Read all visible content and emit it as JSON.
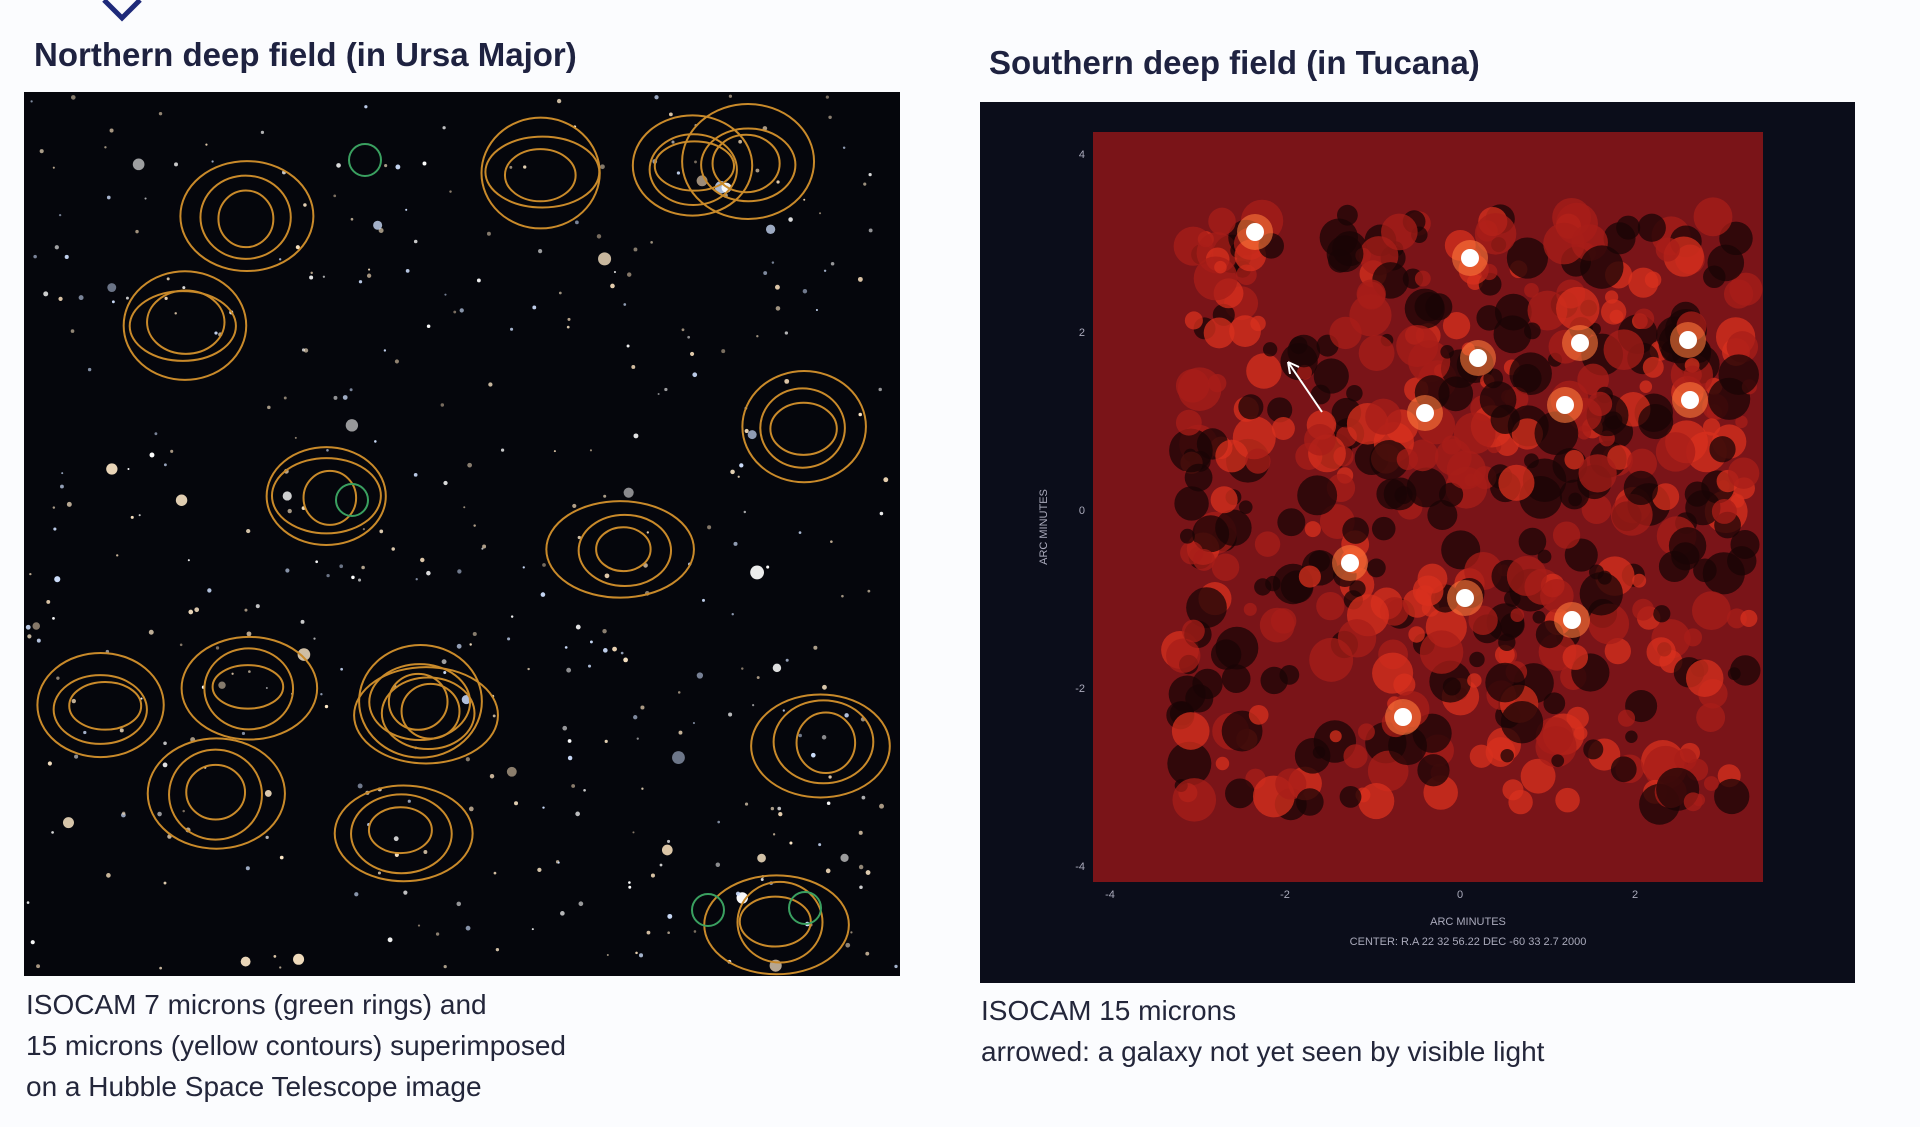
{
  "left": {
    "title": "Northern deep field (in Ursa Major)",
    "caption": [
      "ISOCAM 7 microns (green rings) and",
      "15 microns (yellow contours) superimposed",
      "on a Hubble Space Telescope image"
    ]
  },
  "right": {
    "title": "Southern deep field (in Tucana)",
    "axis_label_y": "ARC MINUTES",
    "axis_label_x": "ARC MINUTES",
    "center": "CENTER: R.A 22 32 56.22  DEC -60 33 2.7 2000",
    "yticks": [
      "4",
      "2",
      "0",
      "-2",
      "-4"
    ],
    "xticks": [
      "-4",
      "-2",
      "0",
      "2"
    ],
    "caption": [
      "ISOCAM 15 microns",
      "arrowed: a galaxy not yet seen by visible light"
    ]
  }
}
